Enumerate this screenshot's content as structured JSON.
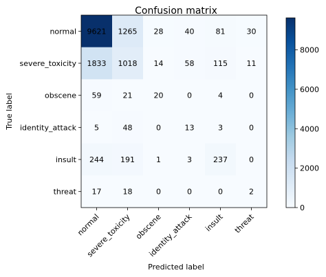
{
  "chart_data": {
    "type": "heatmap",
    "title": "Confusion matrix",
    "xlabel": "Predicted label",
    "ylabel": "True label",
    "row_labels": [
      "normal",
      "severe_toxicity",
      "obscene",
      "identity_attack",
      "insult",
      "threat"
    ],
    "col_labels": [
      "normal",
      "severe_toxicity",
      "obscene",
      "identity_attack",
      "insult",
      "threat"
    ],
    "values": [
      [
        9621,
        1265,
        28,
        40,
        81,
        30
      ],
      [
        1833,
        1018,
        14,
        58,
        115,
        11
      ],
      [
        59,
        21,
        20,
        0,
        4,
        0
      ],
      [
        5,
        48,
        0,
        13,
        3,
        0
      ],
      [
        244,
        191,
        1,
        3,
        237,
        0
      ],
      [
        17,
        18,
        0,
        0,
        0,
        2
      ]
    ],
    "colormap": "Blues",
    "colorbar": {
      "range": [
        0,
        9621
      ],
      "ticks": [
        0,
        2000,
        4000,
        6000,
        8000
      ],
      "tick_labels": [
        "0",
        "2000",
        "4000",
        "6000",
        "8000"
      ]
    },
    "grid": false,
    "legend": "none"
  }
}
